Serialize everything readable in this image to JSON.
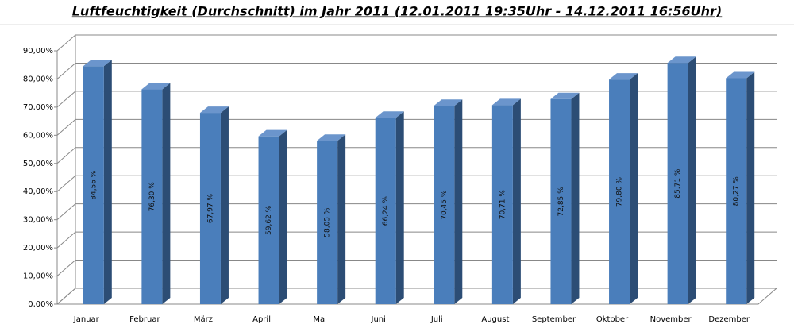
{
  "chart_data": {
    "type": "bar3d",
    "title": "Luftfeuchtigkeit (Durchschnitt) im Jahr 2011   (12.01.2011 19:35Uhr - 14.12.2011 16:56Uhr)",
    "categories": [
      "Januar",
      "Februar",
      "März",
      "April",
      "Mai",
      "Juni",
      "Juli",
      "August",
      "September",
      "Oktober",
      "November",
      "Dezember"
    ],
    "values": [
      84.56,
      76.3,
      67.97,
      59.62,
      58.05,
      66.24,
      70.45,
      70.71,
      72.85,
      79.8,
      85.71,
      80.27
    ],
    "value_labels": [
      "84,56 %",
      "76,30 %",
      "67,97 %",
      "59,62 %",
      "58,05 %",
      "66,24 %",
      "70,45 %",
      "70,71 %",
      "72,85 %",
      "79,80 %",
      "85,71 %",
      "80,27 %"
    ],
    "color": "#4a7ebb",
    "ylim": [
      0,
      90
    ],
    "yticks": [
      {
        "value": 0,
        "label": "0,00%"
      },
      {
        "value": 10,
        "label": "10,00%"
      },
      {
        "value": 20,
        "label": "20,00%"
      },
      {
        "value": 30,
        "label": "30,00%"
      },
      {
        "value": 40,
        "label": "40,00%"
      },
      {
        "value": 50,
        "label": "50,00%"
      },
      {
        "value": 60,
        "label": "60,00%"
      },
      {
        "value": 70,
        "label": "70,00%"
      },
      {
        "value": 80,
        "label": "80,00%"
      },
      {
        "value": 90,
        "label": "90,00%"
      }
    ],
    "grid": true
  }
}
